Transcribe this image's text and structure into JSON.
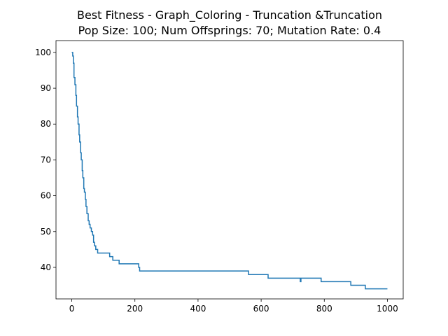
{
  "chart_data": {
    "type": "line",
    "title_lines": [
      "Best Fitness - Graph_Coloring - Truncation &Truncation",
      "Pop Size: 100; Num Offsprings: 70; Mutation Rate: 0.4"
    ],
    "xlabel": "",
    "ylabel": "",
    "xlim": [
      -50,
      1050
    ],
    "ylim": [
      31.2,
      103.3
    ],
    "x_ticks": [
      0,
      200,
      400,
      600,
      800,
      1000
    ],
    "y_ticks": [
      40,
      50,
      60,
      70,
      80,
      90,
      100
    ],
    "grid": false,
    "legend": "none",
    "series": [
      {
        "color": "#1f77b4",
        "step": true,
        "points": [
          [
            0,
            100
          ],
          [
            3,
            99
          ],
          [
            5,
            97
          ],
          [
            7,
            93
          ],
          [
            10,
            91
          ],
          [
            13,
            88
          ],
          [
            15,
            85
          ],
          [
            18,
            82
          ],
          [
            20,
            80
          ],
          [
            23,
            77
          ],
          [
            25,
            75
          ],
          [
            28,
            72
          ],
          [
            30,
            70
          ],
          [
            33,
            67
          ],
          [
            35,
            65
          ],
          [
            38,
            62
          ],
          [
            40,
            61
          ],
          [
            43,
            59
          ],
          [
            45,
            57
          ],
          [
            48,
            55
          ],
          [
            52,
            53
          ],
          [
            55,
            52
          ],
          [
            58,
            51
          ],
          [
            62,
            50
          ],
          [
            66,
            49
          ],
          [
            69,
            47
          ],
          [
            72,
            46
          ],
          [
            76,
            45
          ],
          [
            82,
            44
          ],
          [
            90,
            44
          ],
          [
            100,
            44
          ],
          [
            110,
            44
          ],
          [
            120,
            43
          ],
          [
            130,
            42
          ],
          [
            150,
            41
          ],
          [
            180,
            41
          ],
          [
            205,
            41
          ],
          [
            212,
            40
          ],
          [
            215,
            39
          ],
          [
            300,
            39
          ],
          [
            400,
            39
          ],
          [
            500,
            39
          ],
          [
            558,
            39
          ],
          [
            560,
            38
          ],
          [
            620,
            38
          ],
          [
            622,
            37
          ],
          [
            720,
            37
          ],
          [
            724,
            36
          ],
          [
            726,
            37
          ],
          [
            788,
            37
          ],
          [
            790,
            36
          ],
          [
            880,
            36
          ],
          [
            884,
            35
          ],
          [
            928,
            35
          ],
          [
            930,
            34
          ],
          [
            1000,
            34
          ]
        ]
      }
    ]
  }
}
